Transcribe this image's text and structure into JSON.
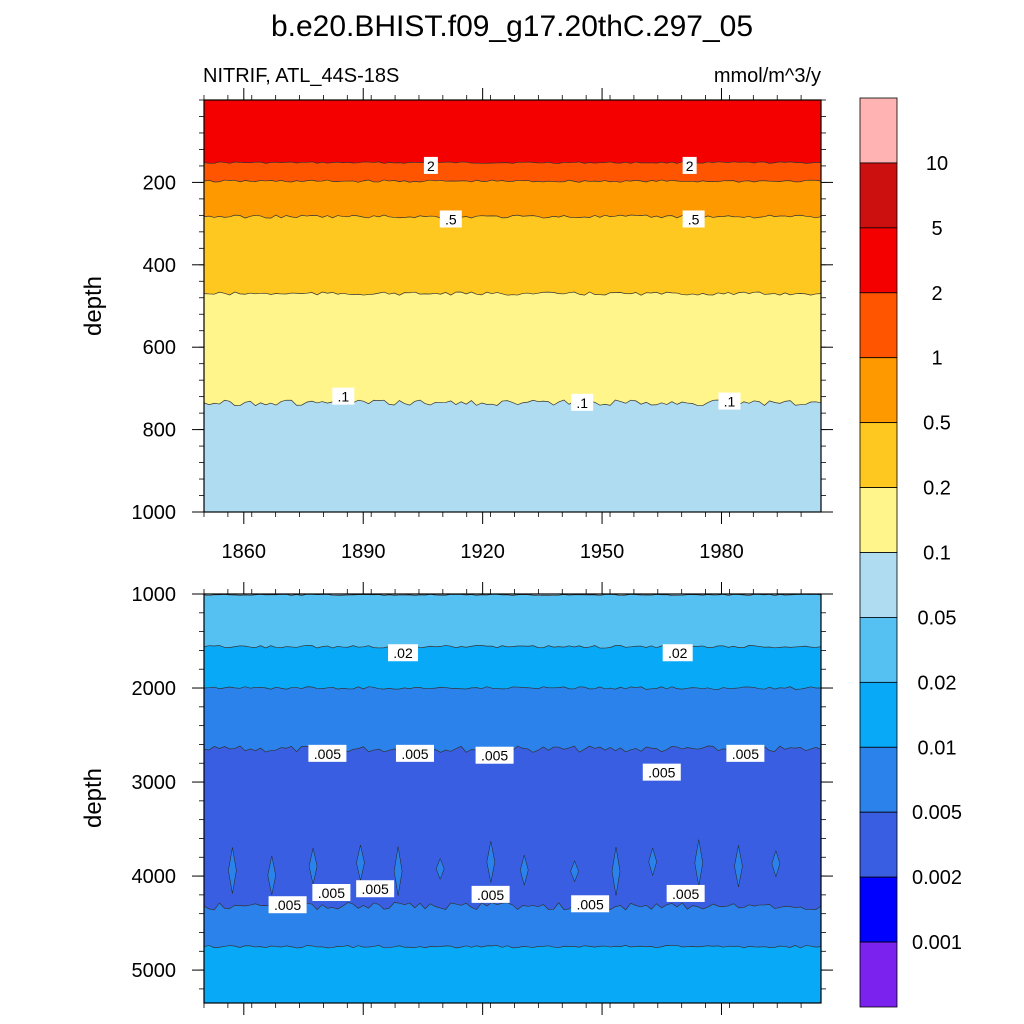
{
  "figure": {
    "title": "b.e20.BHIST.f09_g17.20thC.297_05",
    "variable_label": "NITRIF, ATL_44S-18S",
    "units_label": "mmol/m^3/y"
  },
  "colorbar": {
    "ticks": [
      "10",
      "5",
      "2",
      "1",
      "0.5",
      "0.2",
      "0.1",
      "0.05",
      "0.02",
      "0.01",
      "0.005",
      "0.002",
      "0.001"
    ],
    "colors_top_to_bottom": [
      "#FFB3B3",
      "#CC1010",
      "#F40000",
      "#FF5500",
      "#FF9900",
      "#FFC820",
      "#FFF58A",
      "#B0DCF2",
      "#55C0F2",
      "#08AAF8",
      "#2A82EA",
      "#3A5EE2",
      "#0000FF",
      "#7B22EE"
    ]
  },
  "chart_data": [
    {
      "type": "contour",
      "panel": "top",
      "xlabel": "",
      "ylabel": "depth",
      "xlim": [
        1850,
        2005
      ],
      "ylim": [
        1000,
        0
      ],
      "x_ticks": [
        "1860",
        "1890",
        "1920",
        "1950",
        "1980"
      ],
      "y_ticks": [
        "200",
        "400",
        "600",
        "800",
        "1000"
      ],
      "levels": [
        {
          "value": 2,
          "mean_depth": 152,
          "jitter": 2
        },
        {
          "value": 1,
          "mean_depth": 197,
          "jitter": 3
        },
        {
          "value": 0.5,
          "mean_depth": 283,
          "jitter": 4
        },
        {
          "value": 0.2,
          "mean_depth": 470,
          "jitter": 4
        },
        {
          "value": 0.1,
          "mean_depth": 735,
          "jitter": 7
        }
      ],
      "bands_top_to_bottom": [
        "#F40000",
        "#FF5500",
        "#FF9900",
        "#FFC820",
        "#FFF58A",
        "#B0DCF2"
      ],
      "contour_labels": [
        {
          "text": "2",
          "x": 1907,
          "depth": 160
        },
        {
          "text": "2",
          "x": 1972,
          "depth": 160
        },
        {
          "text": ".5",
          "x": 1912,
          "depth": 290
        },
        {
          "text": ".5",
          "x": 1973,
          "depth": 290
        },
        {
          "text": ".1",
          "x": 1885,
          "depth": 720
        },
        {
          "text": ".1",
          "x": 1945,
          "depth": 735
        },
        {
          "text": ".1",
          "x": 1982,
          "depth": 732
        }
      ]
    },
    {
      "type": "contour",
      "panel": "bottom",
      "xlabel": "",
      "ylabel": "depth",
      "xlim": [
        1850,
        2005
      ],
      "ylim": [
        5350,
        1000
      ],
      "x_ticks": [
        "",
        "",
        "",
        "",
        ""
      ],
      "y_ticks": [
        "1000",
        "2000",
        "3000",
        "4000",
        "5000"
      ],
      "levels": [
        {
          "value": 0.05,
          "mean_depth": 1010,
          "jitter": 8
        },
        {
          "value": 0.02,
          "mean_depth": 1560,
          "jitter": 15
        },
        {
          "value": 0.01,
          "mean_depth": 2000,
          "jitter": 15
        },
        {
          "value": 0.005,
          "mean_depth": 2650,
          "jitter": 35
        },
        {
          "value": 0.005,
          "mean_depth": 4320,
          "jitter": 40
        },
        {
          "value": 0.01,
          "mean_depth": 4750,
          "jitter": 15
        }
      ],
      "bands_top_to_bottom": [
        "#B0DCF2",
        "#55C0F2",
        "#08AAF8",
        "#2A82EA",
        "#3A5EE2",
        "#2A82EA",
        "#08AAF8"
      ],
      "contour_labels": [
        {
          "text": ".02",
          "x": 1900,
          "depth": 1630
        },
        {
          "text": ".02",
          "x": 1969,
          "depth": 1630
        },
        {
          "text": ".005",
          "x": 1881,
          "depth": 2700
        },
        {
          "text": ".005",
          "x": 1903,
          "depth": 2700
        },
        {
          "text": ".005",
          "x": 1923,
          "depth": 2720
        },
        {
          "text": ".005",
          "x": 1965,
          "depth": 2900
        },
        {
          "text": ".005",
          "x": 1986,
          "depth": 2700
        },
        {
          "text": ".005",
          "x": 1871,
          "depth": 4310
        },
        {
          "text": ".005",
          "x": 1882,
          "depth": 4180
        },
        {
          "text": ".005",
          "x": 1893,
          "depth": 4140
        },
        {
          "text": ".005",
          "x": 1922,
          "depth": 4200
        },
        {
          "text": ".005",
          "x": 1947,
          "depth": 4300
        },
        {
          "text": ".005",
          "x": 1971,
          "depth": 4190
        }
      ]
    }
  ]
}
